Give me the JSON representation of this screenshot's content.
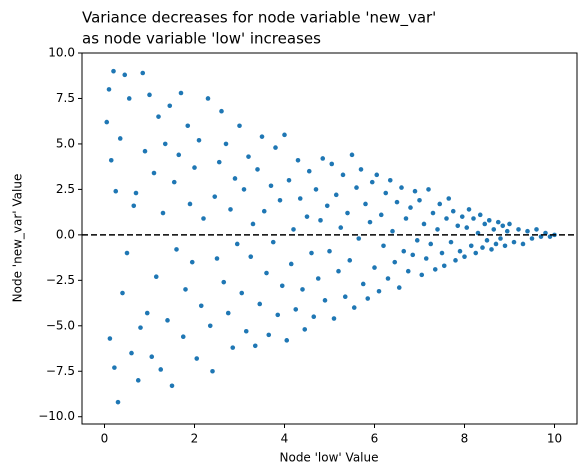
{
  "chart_data": {
    "type": "scatter",
    "title": [
      "Variance decreases for node variable 'new_var'",
      "as node variable 'low' increases"
    ],
    "x_label": "Node 'low' Value",
    "y_label": "Node 'new_var' Value",
    "xlim": [
      -0.5,
      10.5
    ],
    "ylim": [
      -10.4,
      10.0
    ],
    "xticks": [
      0,
      2,
      4,
      6,
      8,
      10
    ],
    "yticks": [
      {
        "value": -10,
        "label": "−10.0"
      },
      {
        "value": -7.5,
        "label": "−7.5"
      },
      {
        "value": -5,
        "label": "−5.0"
      },
      {
        "value": -2.5,
        "label": "−2.5"
      },
      {
        "value": 0,
        "label": "0.0"
      },
      {
        "value": 2.5,
        "label": "2.5"
      },
      {
        "value": 5,
        "label": "5.0"
      },
      {
        "value": 7.5,
        "label": "7.5"
      },
      {
        "value": 10,
        "label": "10.0"
      }
    ],
    "reference_line": {
      "y": 0,
      "color": "#000000",
      "style": "dashed"
    },
    "color": "#1f77b4",
    "x": [
      0.05,
      0.1,
      0.12,
      0.15,
      0.2,
      0.22,
      0.25,
      0.3,
      0.35,
      0.4,
      0.45,
      0.5,
      0.55,
      0.6,
      0.65,
      0.7,
      0.75,
      0.8,
      0.85,
      0.9,
      0.95,
      1.0,
      1.05,
      1.1,
      1.15,
      1.2,
      1.25,
      1.3,
      1.35,
      1.4,
      1.45,
      1.5,
      1.55,
      1.6,
      1.65,
      1.7,
      1.75,
      1.8,
      1.85,
      1.9,
      1.95,
      2.0,
      2.05,
      2.1,
      2.15,
      2.2,
      2.3,
      2.35,
      2.4,
      2.45,
      2.5,
      2.55,
      2.6,
      2.65,
      2.7,
      2.75,
      2.8,
      2.85,
      2.9,
      2.95,
      3.0,
      3.05,
      3.1,
      3.15,
      3.2,
      3.25,
      3.3,
      3.35,
      3.4,
      3.45,
      3.5,
      3.55,
      3.6,
      3.65,
      3.7,
      3.75,
      3.8,
      3.85,
      3.9,
      3.95,
      4.0,
      4.05,
      4.1,
      4.15,
      4.2,
      4.25,
      4.3,
      4.35,
      4.4,
      4.45,
      4.5,
      4.55,
      4.6,
      4.65,
      4.7,
      4.75,
      4.8,
      4.85,
      4.9,
      4.95,
      5.0,
      5.05,
      5.1,
      5.15,
      5.2,
      5.25,
      5.3,
      5.35,
      5.4,
      5.45,
      5.5,
      5.55,
      5.6,
      5.65,
      5.7,
      5.75,
      5.8,
      5.85,
      5.9,
      5.95,
      6.0,
      6.05,
      6.1,
      6.15,
      6.2,
      6.25,
      6.3,
      6.35,
      6.4,
      6.45,
      6.5,
      6.55,
      6.6,
      6.65,
      6.7,
      6.75,
      6.8,
      6.85,
      6.9,
      6.95,
      7.0,
      7.05,
      7.1,
      7.15,
      7.2,
      7.25,
      7.3,
      7.35,
      7.4,
      7.45,
      7.5,
      7.55,
      7.6,
      7.65,
      7.7,
      7.75,
      7.8,
      7.85,
      7.9,
      7.95,
      8.0,
      8.05,
      8.1,
      8.15,
      8.2,
      8.25,
      8.3,
      8.35,
      8.4,
      8.45,
      8.5,
      8.55,
      8.6,
      8.65,
      8.7,
      8.75,
      8.8,
      8.85,
      8.9,
      8.95,
      9.0,
      9.1,
      9.2,
      9.3,
      9.4,
      9.5,
      9.6,
      9.7,
      9.8,
      9.9,
      10.0
    ],
    "y": [
      6.2,
      8.0,
      -5.7,
      4.1,
      9.0,
      -7.3,
      2.4,
      -9.2,
      5.3,
      -3.2,
      8.8,
      -1.0,
      7.5,
      -6.5,
      1.6,
      2.3,
      -8.0,
      -5.1,
      8.9,
      4.6,
      -4.3,
      7.7,
      -6.7,
      3.4,
      -2.3,
      6.5,
      -7.4,
      1.2,
      5.0,
      -4.7,
      7.1,
      -8.3,
      2.9,
      -0.8,
      4.4,
      7.8,
      -5.6,
      -3.0,
      6.0,
      1.7,
      -1.5,
      3.7,
      -6.8,
      5.2,
      -3.9,
      0.9,
      7.5,
      -5.0,
      -7.5,
      2.1,
      -1.3,
      4.0,
      6.8,
      -2.6,
      5.0,
      -4.3,
      1.4,
      -6.2,
      3.1,
      -0.5,
      6.0,
      -3.2,
      2.5,
      -5.3,
      4.3,
      -1.2,
      0.6,
      -6.1,
      3.6,
      -3.8,
      5.4,
      1.3,
      -2.1,
      -5.5,
      2.7,
      -0.4,
      4.8,
      -4.4,
      1.9,
      -2.8,
      5.5,
      -5.8,
      3.0,
      -1.6,
      0.3,
      -4.1,
      4.1,
      2.0,
      -3.0,
      -5.2,
      1.0,
      3.5,
      -1.0,
      -4.5,
      2.5,
      -2.4,
      0.8,
      4.2,
      -3.6,
      1.6,
      -0.9,
      3.9,
      -4.6,
      2.2,
      -2.0,
      0.4,
      3.3,
      -3.4,
      1.2,
      -1.4,
      4.4,
      -4.0,
      2.6,
      -0.2,
      3.6,
      -2.7,
      1.7,
      -3.5,
      0.7,
      2.9,
      -1.8,
      3.3,
      -3.1,
      1.1,
      -0.6,
      2.3,
      -2.4,
      3.0,
      0.2,
      -1.5,
      1.8,
      -2.9,
      2.6,
      -0.9,
      0.9,
      -2.0,
      1.5,
      -1.1,
      2.4,
      -0.3,
      1.9,
      -2.2,
      0.6,
      -1.3,
      2.5,
      -0.5,
      1.2,
      -1.9,
      0.3,
      1.7,
      -1.0,
      -1.7,
      0.9,
      2.0,
      -0.4,
      1.3,
      -1.4,
      0.5,
      -0.9,
      1.0,
      -1.2,
      0.4,
      1.4,
      -0.6,
      0.9,
      -1.0,
      0.1,
      1.1,
      -0.7,
      0.6,
      -0.3,
      0.8,
      -0.8,
      0.3,
      -0.5,
      0.7,
      -0.2,
      0.5,
      -0.6,
      0.2,
      0.6,
      -0.4,
      0.3,
      -0.5,
      0.2,
      -0.2,
      0.3,
      -0.1,
      0.1,
      -0.1,
      0.0
    ]
  }
}
